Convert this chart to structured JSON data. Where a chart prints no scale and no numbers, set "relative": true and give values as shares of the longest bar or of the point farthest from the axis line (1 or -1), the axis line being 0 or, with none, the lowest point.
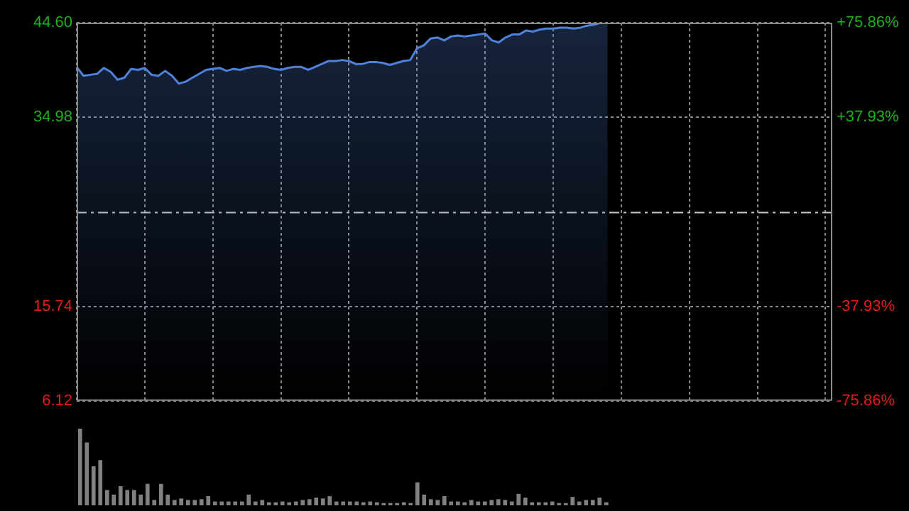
{
  "chart_data": [
    {
      "type": "area",
      "categories": [
        null,
        null,
        null,
        null,
        null,
        null,
        null,
        null,
        null,
        null,
        null,
        null,
        null,
        null,
        null,
        null,
        null,
        null,
        null,
        null,
        null,
        null,
        null,
        null,
        null,
        null,
        null,
        null,
        null,
        null,
        null,
        null,
        null,
        null,
        null,
        null,
        null,
        null,
        null,
        null,
        null,
        null,
        null,
        null,
        null,
        null,
        null,
        null,
        null,
        null,
        null,
        null,
        null,
        null,
        null,
        null,
        null,
        null,
        null,
        null,
        null,
        null,
        null,
        null,
        null,
        null,
        null,
        null,
        null,
        null,
        null,
        null,
        null,
        null,
        null,
        null,
        null,
        null,
        null,
        null,
        null,
        null,
        null,
        null,
        null,
        null,
        null,
        null,
        null,
        null,
        null,
        null,
        null,
        null,
        null,
        null,
        null,
        null,
        null,
        null,
        null,
        null,
        null,
        null,
        null,
        null,
        null,
        null,
        null,
        null,
        null,
        null
      ],
      "series": [
        {
          "color": "#4f81d9",
          "values": [
            40.1,
            39.2,
            39.3,
            39.4,
            40.0,
            39.6,
            38.8,
            39.0,
            39.9,
            39.8,
            40.0,
            39.3,
            39.2,
            39.7,
            39.2,
            38.4,
            38.6,
            39.0,
            39.4,
            39.8,
            39.9,
            40.0,
            39.7,
            39.9,
            39.8,
            40.0,
            40.1,
            40.2,
            40.1,
            39.9,
            39.8,
            40.0,
            40.1,
            40.1,
            39.8,
            40.1,
            40.4,
            40.7,
            40.7,
            40.8,
            40.7,
            40.4,
            40.4,
            40.6,
            40.6,
            40.5,
            40.3,
            40.5,
            40.7,
            40.8,
            42.0,
            42.3,
            43.0,
            43.1,
            42.8,
            43.2,
            43.3,
            43.2,
            43.3,
            43.4,
            43.5,
            42.8,
            42.6,
            43.1,
            43.4,
            43.4,
            43.8,
            43.7,
            43.9,
            44.0,
            44.0,
            44.1,
            44.1,
            44.0,
            44.1,
            44.3,
            44.4,
            44.6,
            44.6,
            null,
            null,
            null,
            null,
            null,
            null,
            null,
            null,
            null,
            null,
            null,
            null,
            null,
            null,
            null,
            null,
            null,
            null,
            null,
            null,
            null,
            null,
            null,
            null,
            null,
            null,
            null,
            null,
            null,
            null,
            null,
            null,
            null
          ]
        }
      ],
      "marker": "none",
      "ylim": [
        6.12,
        44.6
      ],
      "yticks": [
        6.12,
        15.74,
        34.98,
        {
          "value": 44.6,
          "label": "44.60"
        }
      ],
      "y2lim": [
        -75.86,
        75.86
      ],
      "y2ticks": [
        {
          "value": -75.86,
          "label": "-75.86%"
        },
        {
          "value": -37.93,
          "label": "-37.93%"
        },
        {
          "value": 37.93,
          "label": "+37.93%"
        },
        {
          "value": 75.86,
          "label": "+75.86%"
        }
      ],
      "ref_lines": [
        {
          "axis": "y",
          "value": 25.36,
          "line_style": "dashed"
        }
      ],
      "grid": true,
      "tick_labels": "y"
    },
    {
      "type": "bar",
      "relative": true,
      "color": "#808080",
      "tick_labels": false,
      "categories": [
        null,
        null,
        null,
        null,
        null,
        null,
        null,
        null,
        null,
        null,
        null,
        null,
        null,
        null,
        null,
        null,
        null,
        null,
        null,
        null,
        null,
        null,
        null,
        null,
        null,
        null,
        null,
        null,
        null,
        null,
        null,
        null,
        null,
        null,
        null,
        null,
        null,
        null,
        null,
        null,
        null,
        null,
        null,
        null,
        null,
        null,
        null,
        null,
        null,
        null,
        null,
        null,
        null,
        null,
        null,
        null,
        null,
        null,
        null,
        null,
        null,
        null,
        null,
        null,
        null,
        null,
        null,
        null,
        null,
        null,
        null,
        null,
        null,
        null,
        null,
        null,
        null,
        null,
        null,
        null,
        null,
        null,
        null,
        null,
        null,
        null,
        null,
        null,
        null,
        null,
        null,
        null,
        null,
        null,
        null,
        null,
        null,
        null,
        null,
        null,
        null,
        null,
        null,
        null,
        null,
        null,
        null,
        null,
        null,
        null,
        null,
        null
      ],
      "values": [
        1.0,
        0.82,
        0.51,
        0.59,
        0.2,
        0.14,
        0.25,
        0.2,
        0.2,
        0.14,
        0.28,
        0.07,
        0.28,
        0.14,
        0.07,
        0.09,
        0.07,
        0.07,
        0.08,
        0.12,
        0.05,
        0.05,
        0.05,
        0.05,
        0.05,
        0.14,
        0.05,
        0.07,
        0.04,
        0.04,
        0.05,
        0.04,
        0.05,
        0.07,
        0.08,
        0.1,
        0.09,
        0.12,
        0.05,
        0.05,
        0.05,
        0.05,
        0.04,
        0.05,
        0.04,
        0.03,
        0.03,
        0.03,
        0.04,
        0.03,
        0.3,
        0.14,
        0.08,
        0.07,
        0.12,
        0.05,
        0.05,
        0.04,
        0.07,
        0.05,
        0.05,
        0.07,
        0.08,
        0.07,
        0.05,
        0.15,
        0.1,
        0.04,
        0.04,
        0.04,
        0.05,
        0.03,
        0.03,
        0.11,
        0.05,
        0.07,
        0.07,
        0.1,
        0.04,
        null,
        null,
        null,
        null,
        null,
        null,
        null,
        null,
        null,
        null,
        null,
        null,
        null,
        null,
        null,
        null,
        null,
        null,
        null,
        null,
        null,
        null,
        null,
        null,
        null,
        null,
        null,
        null,
        null,
        null,
        null,
        null,
        null
      ]
    }
  ]
}
